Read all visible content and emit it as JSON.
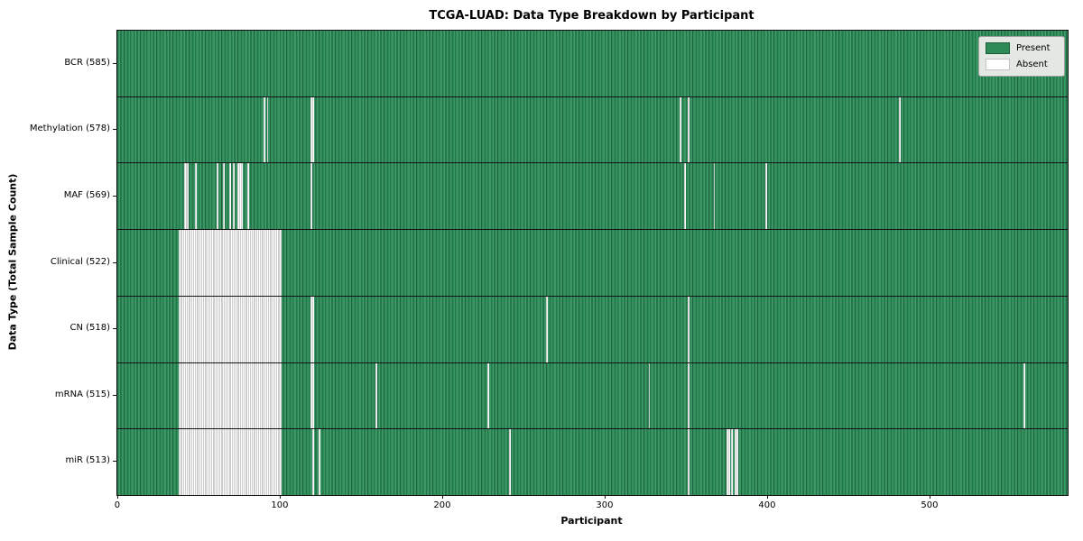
{
  "title": "TCGA-LUAD: Data Type Breakdown by Participant",
  "xlabel": "Participant",
  "ylabel": "Data Type (Total Sample Count)",
  "legend": {
    "present_label": "Present",
    "absent_label": "Absent"
  },
  "colors": {
    "present_fill": "#2e8b57",
    "present_edge": "#1e6240",
    "absent_fill": "#ffffff",
    "absent_edge": "#9a9a9a",
    "legend_bg": "#e3e8e3"
  },
  "chart_data": {
    "type": "heatmap",
    "title": "TCGA-LUAD: Data Type Breakdown by Participant",
    "xlabel": "Participant",
    "ylabel": "Data Type (Total Sample Count)",
    "legend_entries": [
      "Present",
      "Absent"
    ],
    "legend_position": "upper right",
    "n_participants": 585,
    "x_axis": {
      "min": 0,
      "max": 585,
      "tick_values": [
        0,
        100,
        200,
        300,
        400,
        500
      ]
    },
    "value_encoding": {
      "present": "green cell",
      "absent": "white cell"
    },
    "rows": [
      {
        "data_type": "BCR",
        "label": "BCR (585)",
        "present_count": 585,
        "absent_participants": []
      },
      {
        "data_type": "Methylation",
        "label": "Methylation (578)",
        "present_count": 578,
        "absent_participants": [
          90,
          92,
          119,
          120,
          346,
          351,
          481
        ]
      },
      {
        "data_type": "MAF",
        "label": "MAF (569)",
        "present_count": 569,
        "absent_participants": [
          41,
          42,
          43,
          48,
          61,
          65,
          69,
          71,
          74,
          75,
          76,
          80,
          119,
          349,
          367,
          399
        ]
      },
      {
        "data_type": "Clinical",
        "label": "Clinical (522)",
        "present_count": 522,
        "absent_participants": [
          [
            38,
            100
          ]
        ]
      },
      {
        "data_type": "CN",
        "label": "CN (518)",
        "present_count": 518,
        "absent_participants": [
          [
            38,
            100
          ],
          119,
          120,
          264,
          351
        ]
      },
      {
        "data_type": "mRNA",
        "label": "mRNA (515)",
        "present_count": 515,
        "absent_participants": [
          [
            38,
            100
          ],
          119,
          120,
          159,
          228,
          327,
          351,
          558
        ]
      },
      {
        "data_type": "miR",
        "label": "miR (513)",
        "present_count": 513,
        "absent_participants": [
          [
            38,
            100
          ],
          120,
          124,
          241,
          351,
          375,
          376,
          378,
          380,
          381
        ]
      }
    ]
  }
}
